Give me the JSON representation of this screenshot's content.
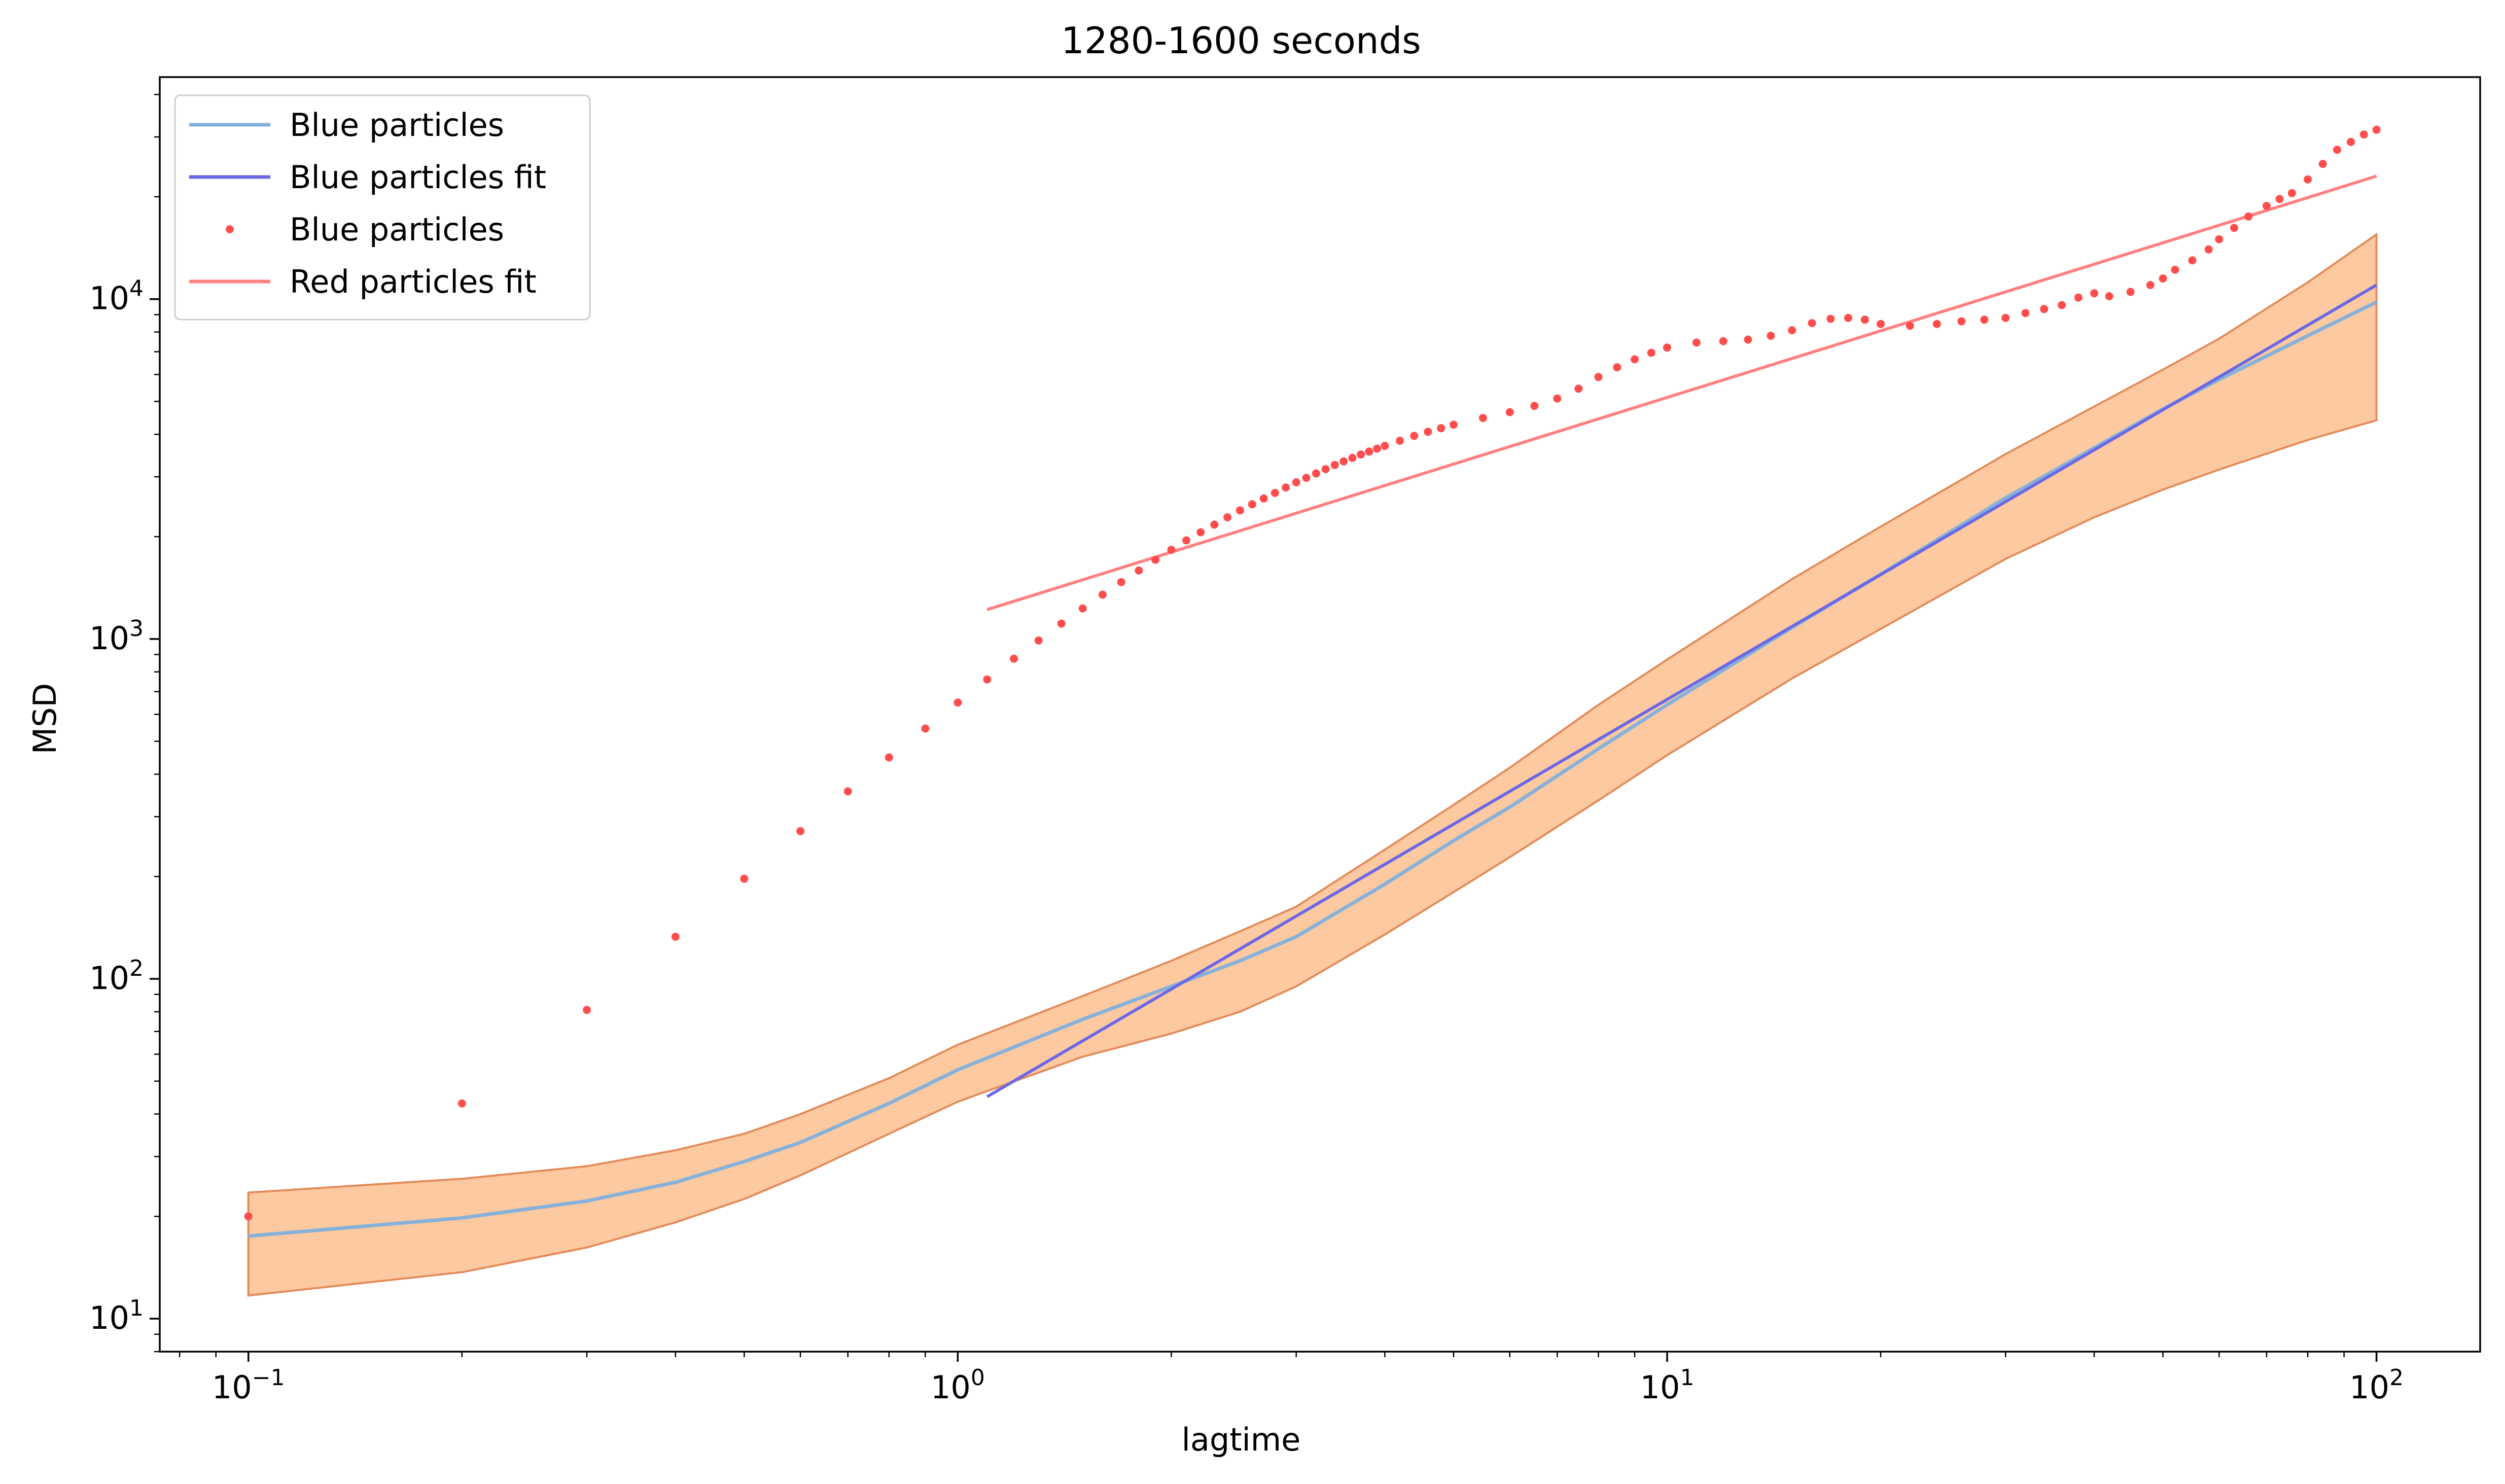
{
  "chart_data": {
    "type": "line",
    "title": "1280-1600 seconds",
    "xlabel": "lagtime",
    "ylabel": "MSD",
    "xscale": "log",
    "yscale": "log",
    "xlim": [
      0.075,
      140
    ],
    "ylim": [
      8,
      45000
    ],
    "grid": false,
    "legend_position": "top-left",
    "x_ticks": [
      {
        "value": 0.1,
        "base": "10",
        "exp": "−1"
      },
      {
        "value": 1,
        "base": "10",
        "exp": "0"
      },
      {
        "value": 10,
        "base": "10",
        "exp": "1"
      },
      {
        "value": 100,
        "base": "10",
        "exp": "2"
      }
    ],
    "y_ticks": [
      {
        "value": 10,
        "base": "10",
        "exp": "1"
      },
      {
        "value": 100,
        "base": "10",
        "exp": "2"
      },
      {
        "value": 1000,
        "base": "10",
        "exp": "3"
      },
      {
        "value": 10000,
        "base": "10",
        "exp": "4"
      }
    ],
    "series": [
      {
        "name": "Blue particles",
        "kind": "line",
        "color": "#7fb0dd",
        "x": [
          0.1,
          0.2,
          0.3,
          0.4,
          0.5,
          0.6,
          0.8,
          1,
          1.5,
          2,
          2.5,
          3,
          4,
          5,
          6,
          8,
          10,
          15,
          20,
          30,
          40,
          50,
          60,
          80,
          100
        ],
        "y": [
          17.5,
          19.8,
          22.2,
          25.2,
          29,
          33,
          43,
          54,
          76,
          95,
          113,
          133,
          190,
          255,
          320,
          475,
          640,
          1080,
          1550,
          2600,
          3650,
          4750,
          5800,
          7800,
          9800
        ]
      },
      {
        "name": "Blue particles band",
        "kind": "band",
        "fill": "#fdbf8f",
        "edge": "#e38b5a",
        "x": [
          0.1,
          0.2,
          0.3,
          0.4,
          0.5,
          0.6,
          0.8,
          1,
          1.5,
          2,
          2.5,
          3,
          4,
          5,
          6,
          8,
          10,
          15,
          20,
          30,
          40,
          50,
          60,
          80,
          100
        ],
        "lower": [
          11.7,
          13.7,
          16.2,
          19.2,
          22.5,
          26.4,
          35,
          43.5,
          59,
          69,
          80,
          95,
          135,
          180,
          228,
          335,
          455,
          765,
          1070,
          1720,
          2280,
          2750,
          3150,
          3850,
          4400
        ],
        "upper": [
          23.5,
          25.8,
          28.1,
          31.3,
          35,
          40,
          51,
          64,
          89,
          113,
          138,
          163,
          240,
          325,
          418,
          640,
          870,
          1500,
          2140,
          3500,
          4830,
          6200,
          7650,
          11200,
          15500
        ]
      },
      {
        "name": "Blue particles fit",
        "kind": "line",
        "color": "#6a68e6",
        "x": [
          1.1,
          100
        ],
        "y": [
          45,
          11000
        ]
      },
      {
        "name": "Blue particles",
        "kind": "points",
        "color": "#ff4d4d",
        "x": [
          0.1,
          0.2,
          0.3,
          0.4,
          0.5,
          0.6,
          0.7,
          0.8,
          0.9,
          1.0,
          1.1,
          1.2,
          1.3,
          1.4,
          1.5,
          1.6,
          1.7,
          1.8,
          1.9,
          2.0,
          2.1,
          2.2,
          2.3,
          2.4,
          2.5,
          2.6,
          2.7,
          2.8,
          2.9,
          3.0,
          3.1,
          3.2,
          3.3,
          3.4,
          3.5,
          3.6,
          3.7,
          3.8,
          3.9,
          4.0,
          4.2,
          4.4,
          4.6,
          4.8,
          5.0,
          5.5,
          6.0,
          6.5,
          7.0,
          7.5,
          8.0,
          8.5,
          9.0,
          9.5,
          10,
          11,
          12,
          13,
          14,
          15,
          16,
          17,
          18,
          19,
          20,
          22,
          24,
          26,
          28,
          30,
          32,
          34,
          36,
          38,
          40,
          42,
          45,
          48,
          50,
          52,
          55,
          58,
          60,
          63,
          66,
          70,
          73,
          76,
          80,
          84,
          88,
          92,
          96,
          100
        ],
        "y": [
          20,
          43,
          81,
          133,
          197,
          272,
          356,
          448,
          545,
          650,
          760,
          875,
          990,
          1110,
          1230,
          1350,
          1470,
          1590,
          1710,
          1830,
          1950,
          2060,
          2170,
          2280,
          2390,
          2490,
          2590,
          2690,
          2790,
          2890,
          2980,
          3070,
          3160,
          3250,
          3330,
          3410,
          3490,
          3560,
          3630,
          3700,
          3830,
          3960,
          4070,
          4170,
          4270,
          4470,
          4650,
          4850,
          5100,
          5450,
          5900,
          6300,
          6650,
          6950,
          7200,
          7450,
          7520,
          7600,
          7800,
          8100,
          8500,
          8750,
          8800,
          8700,
          8450,
          8350,
          8450,
          8600,
          8700,
          8800,
          9100,
          9350,
          9600,
          10100,
          10400,
          10200,
          10500,
          11000,
          11500,
          12200,
          13000,
          14000,
          15000,
          16200,
          17500,
          18800,
          19700,
          20500,
          22500,
          25000,
          27500,
          29000,
          30500,
          31500
        ]
      },
      {
        "name": "Red particles fit",
        "kind": "line",
        "color": "#ff8080",
        "x": [
          1.1,
          100
        ],
        "y": [
          1220,
          23000
        ]
      }
    ],
    "legend": [
      {
        "label": "Blue particles",
        "marker": "line",
        "color": "#7fb0dd"
      },
      {
        "label": "Blue particles fit",
        "marker": "line",
        "color": "#6a68e6"
      },
      {
        "label": "Blue particles",
        "marker": "dot",
        "color": "#ff4d4d"
      },
      {
        "label": "Red particles fit",
        "marker": "line",
        "color": "#ff8080"
      }
    ]
  }
}
